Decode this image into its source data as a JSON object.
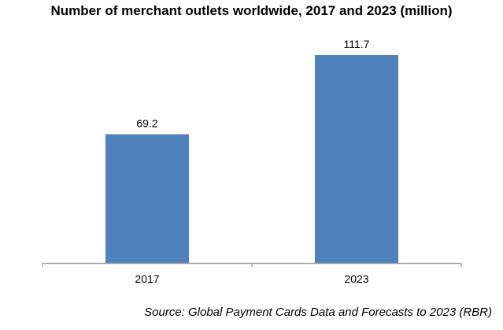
{
  "chart_data": {
    "type": "bar",
    "title": "Number of merchant outlets worldwide, 2017 and 2023 (million)",
    "categories": [
      "2017",
      "2023"
    ],
    "values": [
      69.2,
      111.7
    ],
    "data_labels": [
      "69.2",
      "111.7"
    ],
    "xlabel": "",
    "ylabel": "",
    "ylim": [
      0,
      111.7
    ],
    "grid": false,
    "bar_color": "#4f81bd",
    "source": "Source: Global Payment Cards Data and Forecasts to 2023 (RBR)"
  }
}
